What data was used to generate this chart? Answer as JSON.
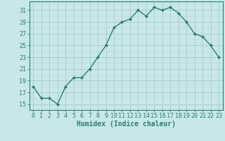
{
  "x": [
    0,
    1,
    2,
    3,
    4,
    5,
    6,
    7,
    8,
    9,
    10,
    11,
    12,
    13,
    14,
    15,
    16,
    17,
    18,
    19,
    20,
    21,
    22,
    23
  ],
  "y": [
    18,
    16,
    16,
    15,
    18,
    19.5,
    19.5,
    21,
    23,
    25,
    28,
    29,
    29.5,
    31,
    30,
    31.5,
    31,
    31.5,
    30.5,
    29,
    27,
    26.5,
    25,
    23
  ],
  "line_color": "#2e7d6e",
  "marker": "D",
  "marker_size": 2.2,
  "bg_color": "#c8e8e8",
  "grid_major_color": "#aacece",
  "grid_minor_color": "#bcdcdc",
  "xlabel": "Humidex (Indice chaleur)",
  "ylabel": "",
  "xlim": [
    -0.5,
    23.5
  ],
  "ylim": [
    14,
    32.5
  ],
  "yticks": [
    15,
    17,
    19,
    21,
    23,
    25,
    27,
    29,
    31
  ],
  "xticks": [
    0,
    1,
    2,
    3,
    4,
    5,
    6,
    7,
    8,
    9,
    10,
    11,
    12,
    13,
    14,
    15,
    16,
    17,
    18,
    19,
    20,
    21,
    22,
    23
  ],
  "tick_color": "#2e7d6e",
  "axis_color": "#2e7d6e",
  "xlabel_fontsize": 7.0,
  "tick_fontsize": 6.0,
  "line_width": 1.0
}
